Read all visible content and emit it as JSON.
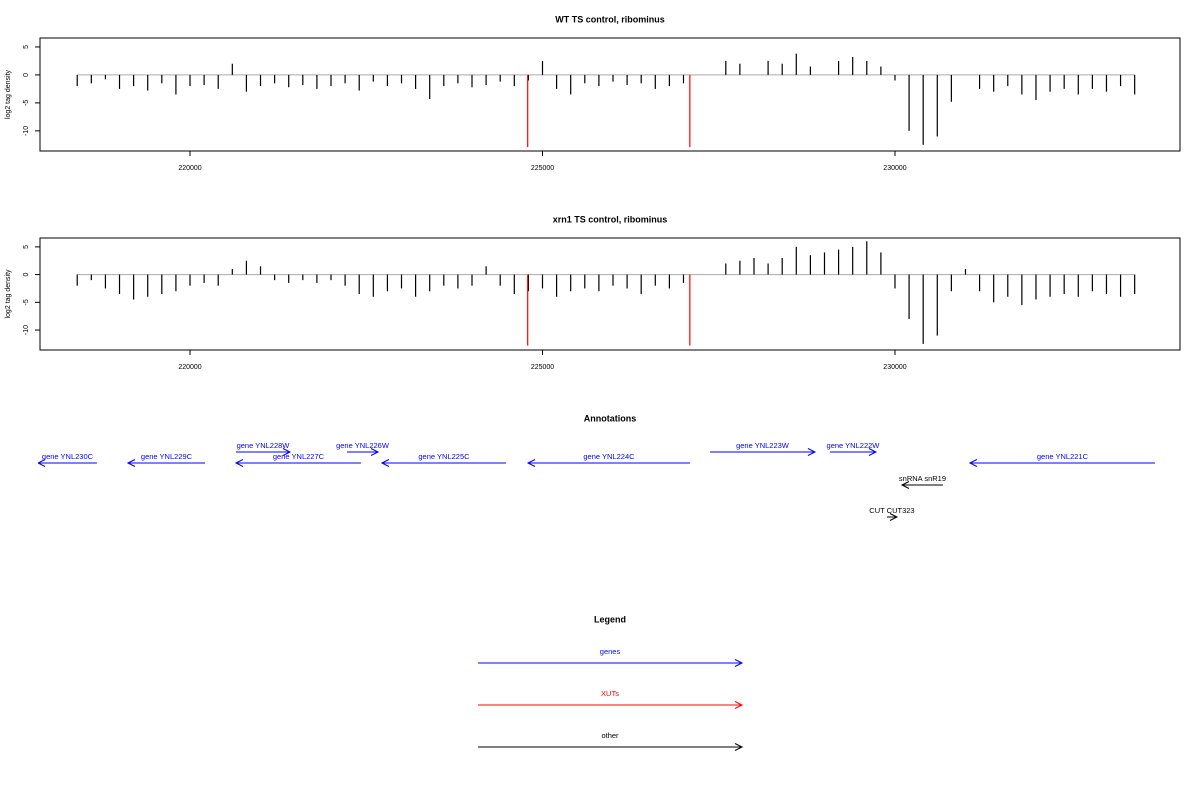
{
  "chart_data": [
    {
      "type": "bar",
      "title": "WT TS control, ribominus",
      "ylabel": "log2 tag density",
      "xlim": [
        217872,
        234043
      ],
      "xticks": [
        220000,
        225000,
        230000
      ],
      "ylim": [
        -13.6,
        6.6
      ],
      "yticks": [
        5,
        0,
        -5,
        -10
      ],
      "series": [
        {
          "color": "#000000",
          "x": [
            218400,
            218600,
            218800,
            219000,
            219200,
            219400,
            219600,
            219800,
            220000,
            220200,
            220400,
            220600,
            220800,
            221000,
            221200,
            221400,
            221600,
            221800,
            222000,
            222200,
            222400,
            222600,
            222800,
            223000,
            223200,
            223400,
            223600,
            223800,
            224000,
            224200,
            224400,
            224600,
            224800,
            225000,
            225200,
            225400,
            225600,
            225800,
            226000,
            226200,
            226400,
            226600,
            226800,
            227000,
            227200,
            227400,
            227600,
            227800,
            228000,
            228200,
            228400,
            228600,
            228800,
            229000,
            229200,
            229400,
            229600,
            229800,
            230000,
            230200,
            230400,
            230600,
            230800,
            231000,
            231200,
            231400,
            231600,
            231800,
            232000,
            232200,
            232400,
            232600,
            232800,
            233000,
            233200,
            233400
          ],
          "values": [
            -2,
            -1.5,
            -0.8,
            -2.5,
            -2,
            -2.8,
            -1.5,
            -3.5,
            -2,
            -1.8,
            -2.5,
            2,
            -3,
            -2,
            -1.5,
            -2.2,
            -1.8,
            -2.5,
            -2,
            -1.5,
            -2.8,
            -1.2,
            -2,
            -1.5,
            -2.5,
            -4.3,
            -2,
            -1.5,
            -2.2,
            -1.8,
            -1.2,
            -2,
            -1,
            2.5,
            -2.5,
            -3.5,
            -1.5,
            -2,
            -1.2,
            -1.8,
            -1.5,
            -2.5,
            -2,
            -1.5,
            0,
            0,
            2.5,
            2,
            0,
            2.5,
            2,
            3.8,
            1.5,
            0,
            2.5,
            3.2,
            2.5,
            1.5,
            -1,
            -10,
            -12.5,
            -11,
            -4.8,
            0,
            -2.5,
            -3,
            -2,
            -3.5,
            -4.5,
            -3,
            -2.5,
            -3.5,
            -2.5,
            -3,
            -2,
            -3.5
          ]
        },
        {
          "color": "#ff0000",
          "x": [
            224790,
            227090
          ],
          "values": [
            -12.9,
            -12.9
          ]
        }
      ]
    },
    {
      "type": "bar",
      "title": "xrn1 TS control, ribominus",
      "ylabel": "log2 tag density",
      "xlim": [
        217872,
        234043
      ],
      "xticks": [
        220000,
        225000,
        230000
      ],
      "ylim": [
        -13.6,
        6.6
      ],
      "yticks": [
        5,
        0,
        -5,
        -10
      ],
      "series": [
        {
          "color": "#000000",
          "x": [
            218400,
            218600,
            218800,
            219000,
            219200,
            219400,
            219600,
            219800,
            220000,
            220200,
            220400,
            220600,
            220800,
            221000,
            221200,
            221400,
            221600,
            221800,
            222000,
            222200,
            222400,
            222600,
            222800,
            223000,
            223200,
            223400,
            223600,
            223800,
            224000,
            224200,
            224400,
            224600,
            224800,
            225000,
            225200,
            225400,
            225600,
            225800,
            226000,
            226200,
            226400,
            226600,
            226800,
            227000,
            227200,
            227400,
            227600,
            227800,
            228000,
            228200,
            228400,
            228600,
            228800,
            229000,
            229200,
            229400,
            229600,
            229800,
            230000,
            230200,
            230400,
            230600,
            230800,
            231000,
            231200,
            231400,
            231600,
            231800,
            232000,
            232200,
            232400,
            232600,
            232800,
            233000,
            233200,
            233400
          ],
          "values": [
            -2,
            -1,
            -2.5,
            -3.5,
            -4.5,
            -4,
            -3.5,
            -3,
            -2,
            -1.5,
            -2,
            1,
            2.5,
            1.5,
            -1,
            -1.5,
            -1,
            -1.5,
            -1,
            -2,
            -3.5,
            -4,
            -3,
            -2.5,
            -4,
            -3,
            -2,
            -2.5,
            -2,
            1.5,
            -2,
            -3.5,
            -3,
            -2.5,
            -4,
            -3,
            -2.5,
            -3,
            -2,
            -2.5,
            -3.5,
            -2,
            -2.5,
            -1.5,
            0,
            0,
            2,
            2.5,
            3,
            2,
            3,
            5,
            3.5,
            4,
            4.5,
            5,
            6,
            4,
            -2.5,
            -8,
            -12.5,
            -11,
            -3,
            1,
            -3,
            -5,
            -4,
            -5.5,
            -4.5,
            -4,
            -3.5,
            -4,
            -3,
            -3.5,
            -4,
            -3.5
          ]
        },
        {
          "color": "#ff0000",
          "x": [
            224790,
            227090
          ],
          "values": [
            -12.8,
            -12.8
          ]
        }
      ]
    },
    {
      "type": "track",
      "title": "Annotations",
      "xlim": [
        217872,
        234043
      ],
      "features": [
        {
          "label": "gene YNL230C",
          "start": 217844,
          "end": 218680,
          "strand": "-",
          "color": "#0000ff"
        },
        {
          "label": "gene YNL229C",
          "start": 219120,
          "end": 220213,
          "strand": "-",
          "color": "#0000ff"
        },
        {
          "label": "gene YNL228W",
          "start": 220652,
          "end": 221418,
          "strand": "+",
          "color": "#0000ff"
        },
        {
          "label": "gene YNL227C",
          "start": 220652,
          "end": 222425,
          "strand": "-",
          "color": "#0000ff"
        },
        {
          "label": "gene YNL226W",
          "start": 222227,
          "end": 222667,
          "strand": "+",
          "color": "#0000ff"
        },
        {
          "label": "gene YNL225C",
          "start": 222723,
          "end": 224482,
          "strand": "-",
          "color": "#0000ff"
        },
        {
          "label": "gene YNL224C",
          "start": 224794,
          "end": 227092,
          "strand": "-",
          "color": "#0000ff"
        },
        {
          "label": "gene YNL223W",
          "start": 227376,
          "end": 228865,
          "strand": "+",
          "color": "#0000ff"
        },
        {
          "label": "gene YNL222W",
          "start": 229078,
          "end": 229730,
          "strand": "+",
          "color": "#0000ff"
        },
        {
          "label": "gene YNL221C",
          "start": 231063,
          "end": 233688,
          "strand": "-",
          "color": "#0000ff"
        },
        {
          "label": "snRNA snR19",
          "start": 230099,
          "end": 230681,
          "strand": "-",
          "color": "#000000"
        },
        {
          "label": "CUT CUT323",
          "start": 229886,
          "end": 230028,
          "strand": "+",
          "color": "#000000"
        }
      ]
    }
  ],
  "legend": {
    "title": "Legend",
    "items": [
      {
        "name": "genes",
        "color": "#0000ff"
      },
      {
        "name": "XUTs",
        "color": "#ff0000"
      },
      {
        "name": "other",
        "color": "#000000"
      }
    ]
  }
}
